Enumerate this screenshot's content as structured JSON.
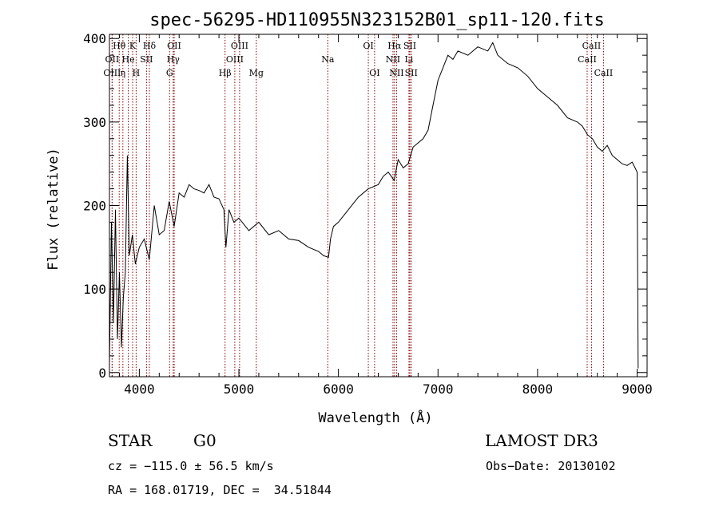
{
  "chart_data": {
    "type": "line",
    "title": "spec-56295-HD110955N323152B01_sp11-120.fits",
    "xlabel": "Wavelength (Å)",
    "ylabel": "Flux (relative)",
    "xlim": [
      3700,
      9100
    ],
    "ylim": [
      -5,
      405
    ],
    "xticks": [
      4000,
      5000,
      6000,
      7000,
      8000,
      9000
    ],
    "yticks": [
      0,
      100,
      200,
      300,
      400
    ],
    "grid": false,
    "line_color": "#000000",
    "marker_color": "#8b0000",
    "series": [
      {
        "x": [
          3700,
          3720,
          3740,
          3760,
          3780,
          3800,
          3820,
          3840,
          3860,
          3880,
          3900,
          3930,
          3960,
          4000,
          4050,
          4100,
          4150,
          4200,
          4250,
          4300,
          4350,
          4400,
          4450,
          4500,
          4550,
          4600,
          4650,
          4700,
          4750,
          4800,
          4850,
          4870,
          4900,
          4950,
          5000,
          5100,
          5200,
          5300,
          5400,
          5500,
          5600,
          5700,
          5800,
          5850,
          5900,
          5920,
          5950,
          6000,
          6100,
          6200,
          6300,
          6400,
          6450,
          6500,
          6560,
          6600,
          6650,
          6700,
          6750,
          6800,
          6850,
          6900,
          6950,
          7000,
          7050,
          7100,
          7150,
          7200,
          7300,
          7400,
          7500,
          7550,
          7600,
          7700,
          7800,
          7900,
          8000,
          8100,
          8200,
          8300,
          8400,
          8450,
          8500,
          8550,
          8600,
          8650,
          8700,
          8750,
          8800,
          8850,
          8900,
          8950,
          8980,
          9000,
          9010
        ],
        "y": [
          10,
          180,
          60,
          195,
          40,
          120,
          30,
          90,
          120,
          260,
          140,
          165,
          130,
          150,
          160,
          135,
          200,
          165,
          170,
          205,
          175,
          215,
          210,
          225,
          220,
          218,
          215,
          225,
          210,
          208,
          195,
          150,
          195,
          180,
          185,
          170,
          180,
          165,
          170,
          160,
          158,
          150,
          145,
          140,
          138,
          160,
          175,
          180,
          195,
          210,
          220,
          225,
          235,
          240,
          230,
          255,
          245,
          250,
          270,
          275,
          280,
          290,
          320,
          350,
          365,
          380,
          375,
          385,
          380,
          390,
          385,
          395,
          380,
          370,
          365,
          355,
          340,
          330,
          320,
          305,
          300,
          295,
          285,
          280,
          270,
          265,
          272,
          260,
          255,
          250,
          248,
          252,
          245,
          240,
          5
        ]
      }
    ],
    "lines": [
      {
        "label": "Hθ",
        "x": 3798,
        "row": 1,
        "marker_x": 3798
      },
      {
        "label": "K",
        "x": 3933,
        "row": 1,
        "marker_x": 3933
      },
      {
        "label": "Hδ",
        "x": 4101,
        "row": 1,
        "marker_x": 4101
      },
      {
        "label": "OII",
        "x": 4350,
        "row": 1,
        "marker_x": 4350
      },
      {
        "label": "OIII",
        "x": 5007,
        "row": 1,
        "marker_x": 5007
      },
      {
        "label": "OI",
        "x": 6300,
        "row": 1,
        "marker_x": 6300
      },
      {
        "label": "Hα",
        "x": 6563,
        "row": 1,
        "marker_x": 6563
      },
      {
        "label": "SII",
        "x": 6717,
        "row": 1,
        "marker_x": 6717
      },
      {
        "label": "CaII",
        "x": 8542,
        "row": 1,
        "marker_x": 8542
      },
      {
        "label": "OII",
        "x": 3727,
        "row": 2,
        "marker_x": 3727
      },
      {
        "label": "He",
        "x": 3889,
        "row": 2,
        "marker_x": 3889
      },
      {
        "label": "SII",
        "x": 4072,
        "row": 2,
        "marker_x": 4072
      },
      {
        "label": "Hγ",
        "x": 4340,
        "row": 2,
        "marker_x": 4340
      },
      {
        "label": "OIII",
        "x": 4959,
        "row": 2,
        "marker_x": 4959
      },
      {
        "label": "Na",
        "x": 5893,
        "row": 2,
        "marker_x": 5893
      },
      {
        "label": "NII",
        "x": 6548,
        "row": 2,
        "marker_x": 6548
      },
      {
        "label": "Li",
        "x": 6708,
        "row": 2,
        "marker_x": 6708
      },
      {
        "label": "CaII",
        "x": 8498,
        "row": 2,
        "marker_x": 8498
      },
      {
        "label": "OIII",
        "x": 3727,
        "row": 3,
        "marker_x": 3727
      },
      {
        "label": "η",
        "x": 3835,
        "row": 3,
        "marker_x": 3835
      },
      {
        "label": "H",
        "x": 3968,
        "row": 3,
        "marker_x": 3968
      },
      {
        "label": "G",
        "x": 4304,
        "row": 3,
        "marker_x": 4304
      },
      {
        "label": "Hβ",
        "x": 4861,
        "row": 3,
        "marker_x": 4861
      },
      {
        "label": "Mg",
        "x": 5175,
        "row": 3,
        "marker_x": 5175
      },
      {
        "label": "OI",
        "x": 6363,
        "row": 3,
        "marker_x": 6363
      },
      {
        "label": "NII",
        "x": 6584,
        "row": 3,
        "marker_x": 6584
      },
      {
        "label": "SII",
        "x": 6731,
        "row": 3,
        "marker_x": 6731
      },
      {
        "label": "CaII",
        "x": 8662,
        "row": 3,
        "marker_x": 8662
      }
    ]
  },
  "info": {
    "object_class": "STAR",
    "subclass": "G0",
    "survey": "LAMOST DR3",
    "velocity": "cz = −115.0 ± 56.5 km/s",
    "obs_date": "Obs−Date: 20130102",
    "coords": "RA = 168.01719, DEC =  34.51844"
  }
}
